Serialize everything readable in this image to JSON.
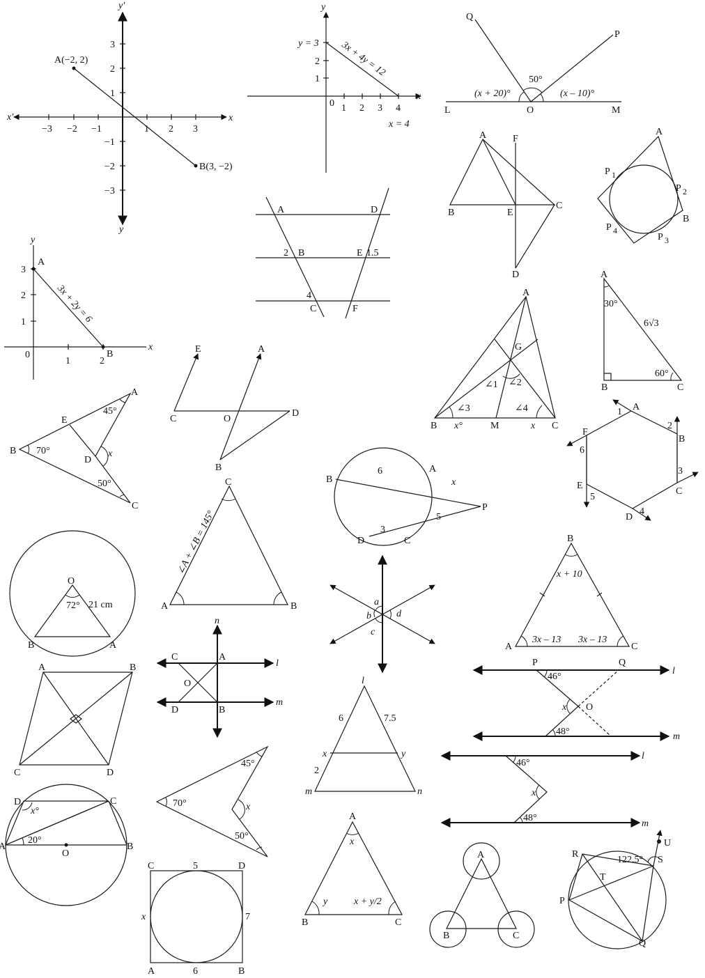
{
  "fig1": {
    "y_top": "y′",
    "y_bot": "y",
    "x_left": "x′",
    "x_right": "x",
    "ticks_x": [
      "−3",
      "−2",
      "−1",
      "1",
      "2",
      "3"
    ],
    "ticks_y": [
      "3",
      "2",
      "1",
      "−1",
      "−2",
      "−3"
    ],
    "pointA": "A(−2, 2)",
    "pointB": "B(3, −2)"
  },
  "fig2": {
    "y": "y",
    "x": "x",
    "origin": "0",
    "ticks_x": [
      "1",
      "2",
      "3",
      "4"
    ],
    "ticks_y": [
      "1",
      "2"
    ],
    "y3": "y = 3",
    "x4": "x = 4",
    "line": "3x + 4y = 12"
  },
  "fig3": {
    "Q": "Q",
    "P": "P",
    "L": "L",
    "O": "O",
    "M": "M",
    "left": "(x + 20)°",
    "mid": "50°",
    "right": "(x – 10)°"
  },
  "fig4": {
    "A": "A",
    "F": "F",
    "B": "B",
    "E": "E",
    "C": "C",
    "D": "D"
  },
  "fig5": {
    "A": "A",
    "P1": "P",
    "P1s": "1",
    "P2": "P",
    "P2s": "2",
    "B": "B",
    "P4": "P",
    "P4s": "4",
    "P3": "P",
    "P3s": "3"
  },
  "fig6": {
    "y": "y",
    "x": "x",
    "A": "A",
    "B": "B",
    "origin": "0",
    "ticks_x": [
      "1",
      "2"
    ],
    "ticks_y": [
      "3",
      "2",
      "1"
    ],
    "line": "3x + 2y = 6"
  },
  "fig7": {
    "A": "A",
    "D": "D",
    "B": "B",
    "E": "E",
    "C": "C",
    "F": "F",
    "l2": "2",
    "l15": "1.5",
    "l4": "4"
  },
  "fig8": {
    "A": "A",
    "G": "G",
    "a1": "∠1",
    "a2": "∠2",
    "a3": "∠3",
    "a4": "∠4",
    "B": "B",
    "x1": "x°",
    "M": "M",
    "x2": "x",
    "C": "C"
  },
  "fig9": {
    "A": "A",
    "a30": "30°",
    "side": "6√3",
    "a60": "60°",
    "B": "B",
    "C": "C"
  },
  "fig10": {
    "E": "E",
    "A": "A",
    "C": "C",
    "O": "O",
    "D": "D",
    "B": "B"
  },
  "fig11": {
    "A": "A",
    "a45": "45°",
    "E": "E",
    "B": "B",
    "a70": "70°",
    "D": "D",
    "x": "x",
    "a50": "50°",
    "C": "C"
  },
  "fig12": {
    "A": "A",
    "B": "B",
    "C": "C",
    "D": "D",
    "P": "P",
    "s6": "6",
    "x": "x",
    "s5": "5",
    "s3": "3"
  },
  "fig13": {
    "A": "A",
    "B": "B",
    "C": "C",
    "D": "D",
    "E": "E",
    "F": "F",
    "n1": "1",
    "n2": "2",
    "n3": "3",
    "n4": "4",
    "n5": "5",
    "n6": "6"
  },
  "fig14": {
    "O": "O",
    "a72": "72°",
    "r": "21 cm",
    "B": "B",
    "A": "A"
  },
  "fig15": {
    "C": "C",
    "A": "A",
    "B": "B",
    "side": "∠A + ∠B = 145°"
  },
  "fig16": {
    "a": "a",
    "b": "b",
    "c": "c",
    "d": "d"
  },
  "fig17": {
    "B": "B",
    "top": "x + 10",
    "A": "A",
    "C": "C",
    "l": "3x – 13",
    "r": "3x – 13"
  },
  "fig18": {
    "A": "A",
    "B": "B",
    "C": "C",
    "D": "D"
  },
  "fig19": {
    "n": "n",
    "C": "C",
    "A": "A",
    "l": "l",
    "O": "O",
    "D": "D",
    "B": "B",
    "m": "m"
  },
  "fig20": {
    "l": "l",
    "s6": "6",
    "s75": "7.5",
    "x": "x",
    "y": "y",
    "s2": "2",
    "m": "m",
    "n": "n"
  },
  "fig21": {
    "P": "P",
    "Q": "Q",
    "l": "l",
    "a46": "46°",
    "x": "x",
    "O": "O",
    "a48": "48°",
    "m": "m"
  },
  "fig22": {
    "l": "l",
    "a46": "46°",
    "x": "x",
    "a48": "48°",
    "m": "m"
  },
  "fig23": {
    "D": "D",
    "C": "C",
    "x": "x°",
    "A": "A",
    "a20": "20°",
    "O": "O",
    "B": "B"
  },
  "fig24": {
    "a45": "45°",
    "a70": "70°",
    "x": "x",
    "a50": "50°"
  },
  "fig25": {
    "C": "C",
    "s5": "5",
    "D": "D",
    "x": "x",
    "s7": "7",
    "A": "A",
    "s6": "6",
    "B": "B"
  },
  "fig26": {
    "A": "A",
    "x": "x",
    "y": "y",
    "z": "x + y/2",
    "B": "B",
    "C": "C"
  },
  "fig27": {
    "A": "A",
    "B": "B",
    "C": "C"
  },
  "fig28": {
    "U": "U",
    "R": "R",
    "a": "122.5°",
    "S": "S",
    "T": "T",
    "P": "P",
    "Q": "Q"
  }
}
